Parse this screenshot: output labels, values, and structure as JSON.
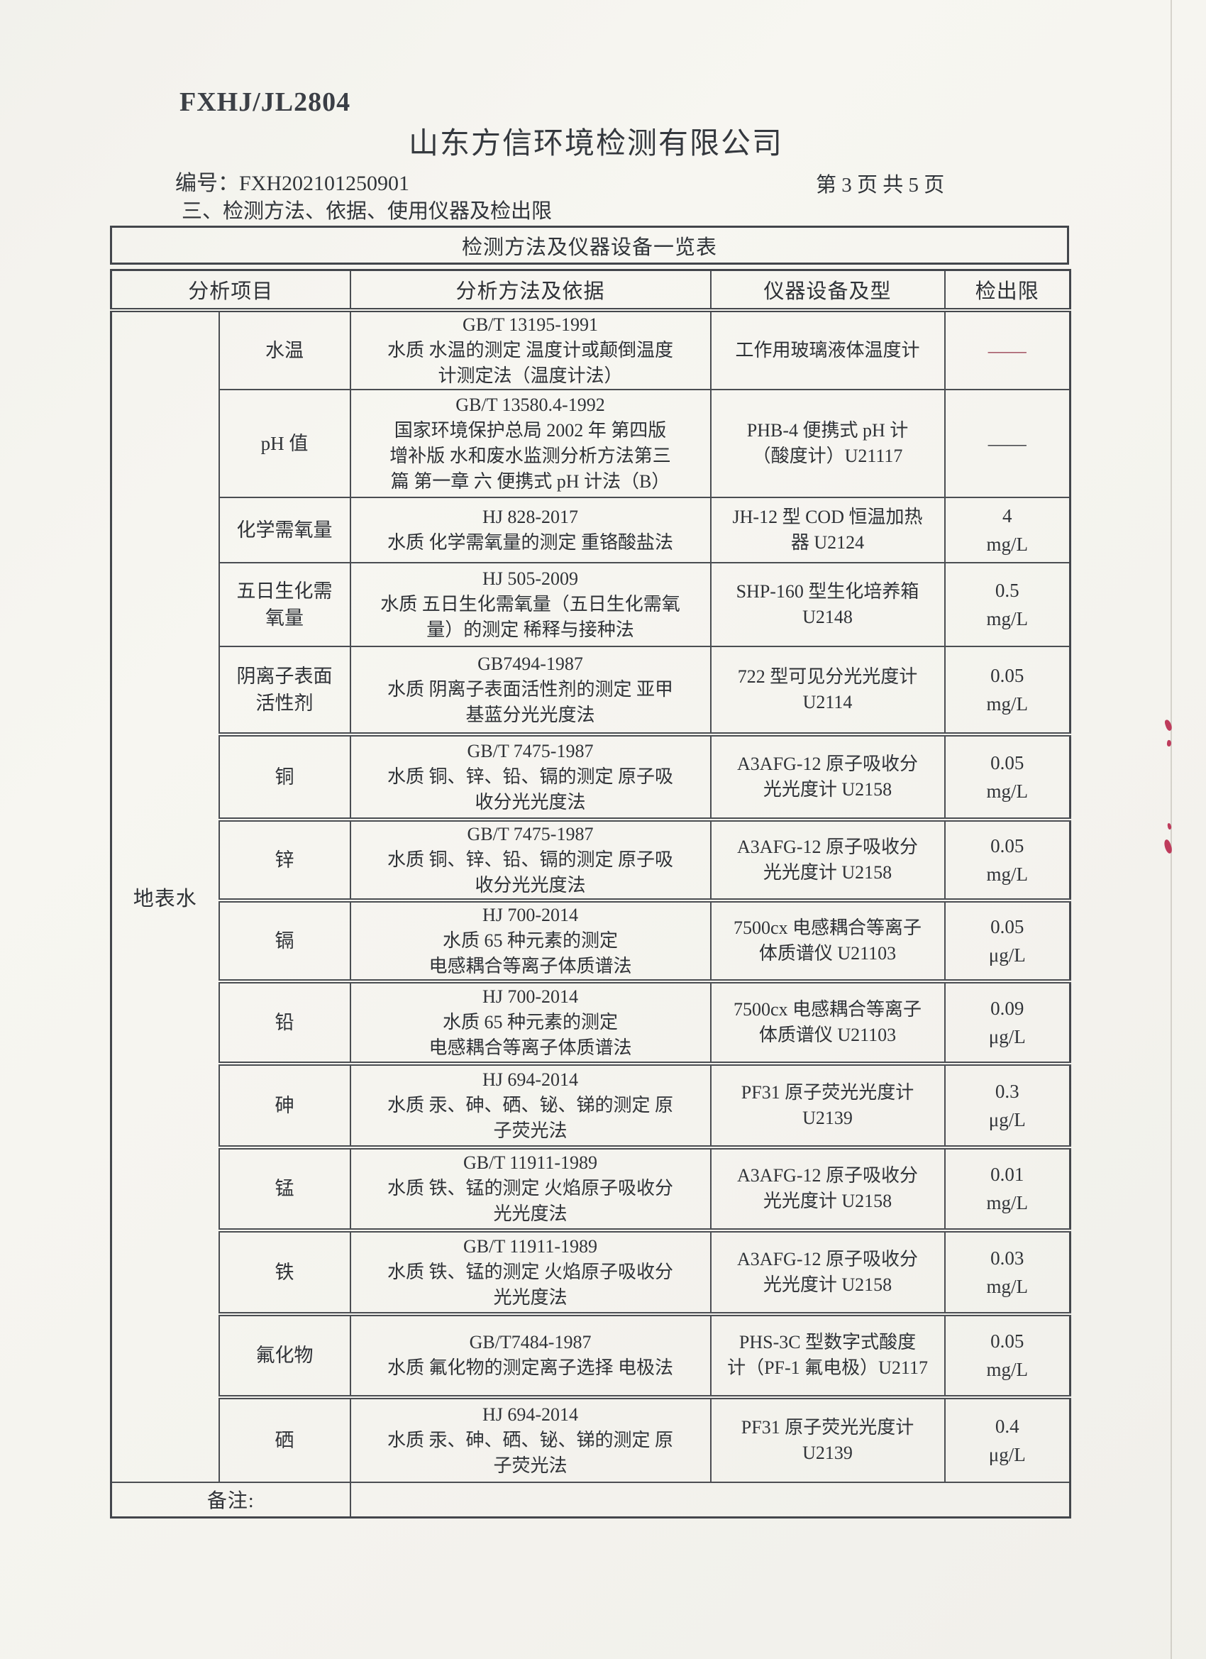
{
  "page": {
    "form_code": "FXHJ/JL2804",
    "company_name": "山东方信环境检测有限公司",
    "report_no_label": "编号：",
    "report_no": "FXH202101250901",
    "page_indicator": "第 3 页 共 5 页",
    "section_heading": "三、检测方法、依据、使用仪器及检出限"
  },
  "table": {
    "title": "检测方法及仪器设备一览表",
    "col_headers": {
      "item": "分析项目",
      "method": "分析方法及依据",
      "instrument": "仪器设备及型",
      "limit": "检出限"
    },
    "category_label": "地表水",
    "remark_label": "备注:",
    "rows": [
      {
        "item_lines": [
          "水温"
        ],
        "method_lines": [
          "GB/T 13195-1991",
          "水质 水温的测定 温度计或颠倒温度",
          "计测定法（温度计法）"
        ],
        "instrument_lines": [
          "工作用玻璃液体温度计"
        ],
        "limit_lines": [
          "——"
        ],
        "limit_color": "#9c4355"
      },
      {
        "item_lines": [
          "pH 值"
        ],
        "method_lines": [
          "GB/T 13580.4-1992",
          "国家环境保护总局 2002 年 第四版",
          "增补版 水和废水监测分析方法第三",
          "篇 第一章 六 便携式 pH 计法（B）"
        ],
        "instrument_lines": [
          "PHB-4 便携式 pH 计",
          "（酸度计）U21117"
        ],
        "limit_lines": [
          "——"
        ]
      },
      {
        "item_lines": [
          "化学需氧量"
        ],
        "method_lines": [
          "HJ 828-2017",
          "水质 化学需氧量的测定 重铬酸盐法"
        ],
        "instrument_lines": [
          "JH-12 型 COD 恒温加热",
          "器 U2124"
        ],
        "limit_lines": [
          "4",
          "mg/L"
        ]
      },
      {
        "item_lines": [
          "五日生化需",
          "氧量"
        ],
        "method_lines": [
          "HJ 505-2009",
          "水质 五日生化需氧量（五日生化需氧",
          "量）的测定 稀释与接种法"
        ],
        "instrument_lines": [
          "SHP-160 型生化培养箱",
          "U2148"
        ],
        "limit_lines": [
          "0.5",
          "mg/L"
        ]
      },
      {
        "item_lines": [
          "阴离子表面",
          "活性剂"
        ],
        "method_lines": [
          "GB7494-1987",
          "水质 阴离子表面活性剂的测定 亚甲",
          "基蓝分光光度法"
        ],
        "instrument_lines": [
          "722 型可见分光光度计",
          "U2114"
        ],
        "limit_lines": [
          "0.05",
          "mg/L"
        ]
      },
      {
        "item_lines": [
          "铜"
        ],
        "method_lines": [
          "GB/T 7475-1987",
          "水质 铜、锌、铅、镉的测定 原子吸",
          "收分光光度法"
        ],
        "instrument_lines": [
          "A3AFG-12 原子吸收分",
          "光光度计 U2158"
        ],
        "limit_lines": [
          "0.05",
          "mg/L"
        ]
      },
      {
        "item_lines": [
          "锌"
        ],
        "method_lines": [
          "GB/T 7475-1987",
          "水质 铜、锌、铅、镉的测定 原子吸",
          "收分光光度法"
        ],
        "instrument_lines": [
          "A3AFG-12 原子吸收分",
          "光光度计 U2158"
        ],
        "limit_lines": [
          "0.05",
          "mg/L"
        ]
      },
      {
        "item_lines": [
          "镉"
        ],
        "method_lines": [
          "HJ 700-2014",
          "水质 65 种元素的测定",
          "电感耦合等离子体质谱法"
        ],
        "instrument_lines": [
          "7500cx 电感耦合等离子",
          "体质谱仪 U21103"
        ],
        "limit_lines": [
          "0.05",
          "μg/L"
        ]
      },
      {
        "item_lines": [
          "铅"
        ],
        "method_lines": [
          "HJ 700-2014",
          "水质 65 种元素的测定",
          "电感耦合等离子体质谱法"
        ],
        "instrument_lines": [
          "7500cx 电感耦合等离子",
          "体质谱仪 U21103"
        ],
        "limit_lines": [
          "0.09",
          "μg/L"
        ]
      },
      {
        "item_lines": [
          "砷"
        ],
        "method_lines": [
          "HJ 694-2014",
          "水质 汞、砷、硒、铋、锑的测定 原",
          "子荧光法"
        ],
        "instrument_lines": [
          "PF31 原子荧光光度计",
          "U2139"
        ],
        "limit_lines": [
          "0.3",
          "μg/L"
        ]
      },
      {
        "item_lines": [
          "锰"
        ],
        "method_lines": [
          "GB/T 11911-1989",
          "水质 铁、锰的测定 火焰原子吸收分",
          "光光度法"
        ],
        "instrument_lines": [
          "A3AFG-12 原子吸收分",
          "光光度计 U2158"
        ],
        "limit_lines": [
          "0.01",
          "mg/L"
        ]
      },
      {
        "item_lines": [
          "铁"
        ],
        "method_lines": [
          "GB/T 11911-1989",
          "水质 铁、锰的测定 火焰原子吸收分",
          "光光度法"
        ],
        "instrument_lines": [
          "A3AFG-12 原子吸收分",
          "光光度计 U2158"
        ],
        "limit_lines": [
          "0.03",
          "mg/L"
        ]
      },
      {
        "item_lines": [
          "氟化物"
        ],
        "method_lines": [
          "GB/T7484-1987",
          "水质 氟化物的测定离子选择 电极法"
        ],
        "instrument_lines": [
          "PHS-3C 型数字式酸度",
          "计（PF-1 氟电极）U2117"
        ],
        "limit_lines": [
          "0.05",
          "mg/L"
        ]
      },
      {
        "item_lines": [
          "硒"
        ],
        "method_lines": [
          "HJ 694-2014",
          "水质 汞、砷、硒、铋、锑的测定 原",
          "子荧光法"
        ],
        "instrument_lines": [
          "PF31 原子荧光光度计",
          "U2139"
        ],
        "limit_lines": [
          "0.4",
          "μg/L"
        ]
      }
    ]
  },
  "colors": {
    "ink": "#2e3136",
    "border": "#4a4d52",
    "paper": "#f7f6f1",
    "limit_dash_red": "#9c4355",
    "red_mark": "#c03a5c"
  }
}
